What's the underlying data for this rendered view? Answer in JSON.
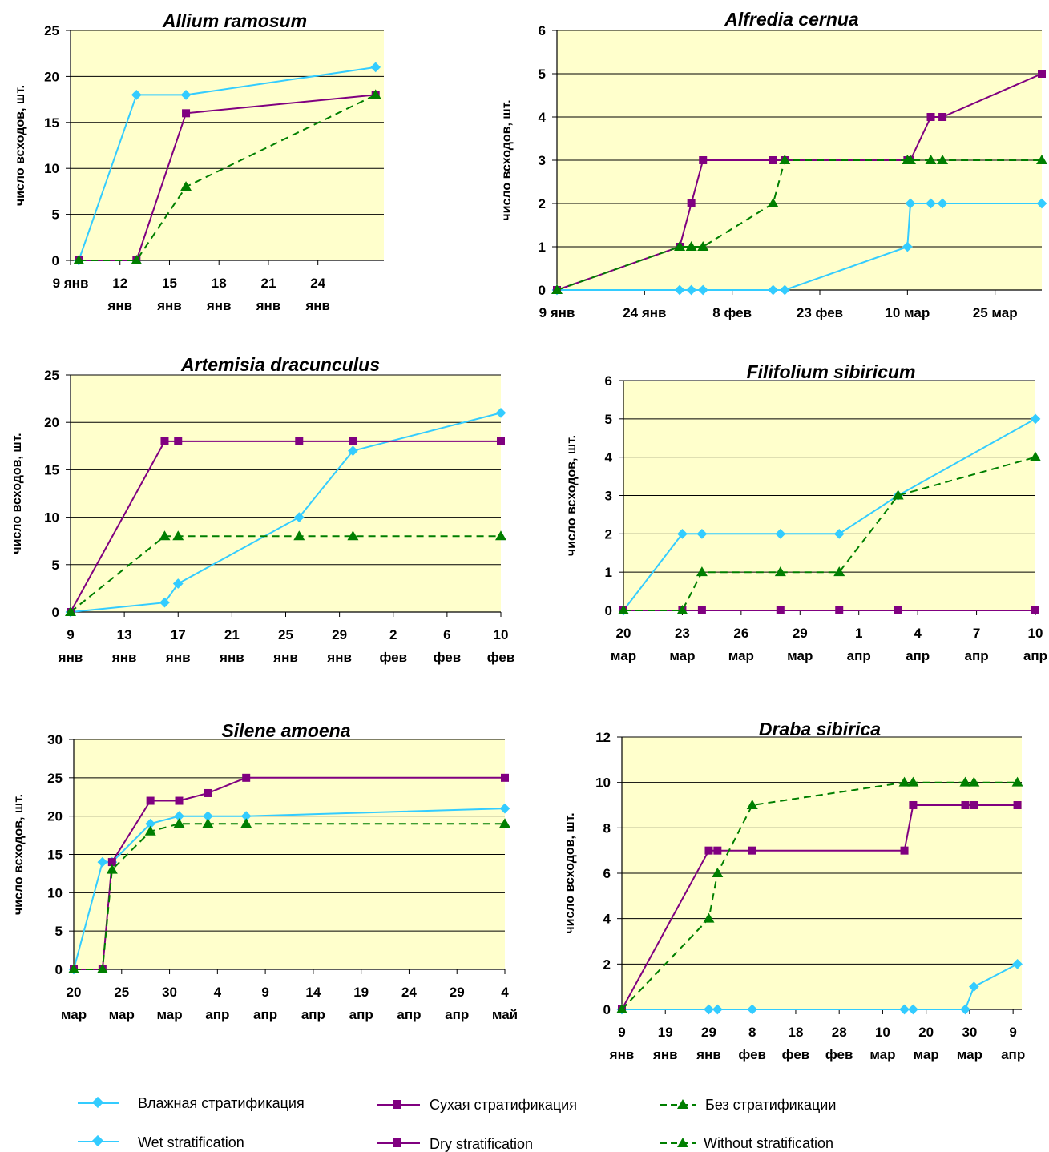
{
  "colors": {
    "wet": "#33CCFF",
    "wet_marker": "#33CCFF",
    "dry": "#800080",
    "without": "#007F00",
    "plot_bg": "#FFFFCC"
  },
  "legend": {
    "wet_ru": "Влажная   стратификация",
    "dry_ru": "Сухая   стратификация",
    "without_ru": "Без   стратификации",
    "wet_en": "Wet   stratification",
    "dry_en": "Dry   stratification",
    "without_en": "Without   stratification"
  },
  "chart_data": [
    {
      "type": "line",
      "title": "Allium ramosum",
      "ylabel": "число всходов, шт.",
      "ylim": [
        0,
        25
      ],
      "yticks": [
        0,
        5,
        10,
        15,
        20,
        25
      ],
      "xlim": [
        9,
        28
      ],
      "xticks": [
        {
          "x": 9,
          "l1": "9 янв",
          "l2": ""
        },
        {
          "x": 12,
          "l1": "12",
          "l2": "янв"
        },
        {
          "x": 15,
          "l1": "15",
          "l2": "янв"
        },
        {
          "x": 18,
          "l1": "18",
          "l2": "янв"
        },
        {
          "x": 21,
          "l1": "21",
          "l2": "янв"
        },
        {
          "x": 24,
          "l1": "24",
          "l2": "янв"
        }
      ],
      "series": [
        {
          "key": "wet",
          "x": [
            9.5,
            13,
            16,
            27.5
          ],
          "y": [
            0,
            18,
            18,
            21
          ]
        },
        {
          "key": "dry",
          "x": [
            9.5,
            13,
            16,
            27.5
          ],
          "y": [
            0,
            0,
            16,
            18
          ]
        },
        {
          "key": "without",
          "x": [
            9.5,
            13,
            16,
            27.5
          ],
          "y": [
            0,
            0,
            8,
            18
          ]
        }
      ]
    },
    {
      "type": "line",
      "title": "Alfredia cernua",
      "ylabel": "число всходов, шт.",
      "ylim": [
        0,
        6
      ],
      "yticks": [
        0,
        1,
        2,
        3,
        4,
        5,
        6
      ],
      "xlim": [
        9,
        92
      ],
      "xticks": [
        {
          "x": 9,
          "l1": "9 янв",
          "l2": ""
        },
        {
          "x": 24,
          "l1": "24 янв",
          "l2": ""
        },
        {
          "x": 39,
          "l1": "8 фев",
          "l2": ""
        },
        {
          "x": 54,
          "l1": "23 фев",
          "l2": ""
        },
        {
          "x": 69,
          "l1": "10 мар",
          "l2": ""
        },
        {
          "x": 84,
          "l1": "25 мар",
          "l2": ""
        }
      ],
      "series": [
        {
          "key": "wet",
          "x": [
            9,
            30,
            32,
            34,
            46,
            48,
            69,
            69.5,
            73,
            75,
            92
          ],
          "y": [
            0,
            0,
            0,
            0,
            0,
            0,
            1,
            2,
            2,
            2,
            2
          ]
        },
        {
          "key": "dry",
          "x": [
            9,
            30,
            32,
            34,
            46,
            48,
            69,
            69.5,
            73,
            75,
            92
          ],
          "y": [
            0,
            1,
            2,
            3,
            3,
            3,
            3,
            3,
            4,
            4,
            5
          ]
        },
        {
          "key": "without",
          "x": [
            9,
            30,
            32,
            34,
            46,
            48,
            69,
            69.5,
            73,
            75,
            92
          ],
          "y": [
            0,
            1,
            1,
            1,
            2,
            3,
            3,
            3,
            3,
            3,
            3
          ]
        }
      ]
    },
    {
      "type": "line",
      "title": "Artemisia dracunculus",
      "ylabel": "число всходов, шт.",
      "ylim": [
        0,
        25
      ],
      "yticks": [
        0,
        5,
        10,
        15,
        20,
        25
      ],
      "xlim": [
        9,
        41
      ],
      "xticks": [
        {
          "x": 9,
          "l1": "9",
          "l2": "янв"
        },
        {
          "x": 13,
          "l1": "13",
          "l2": "янв"
        },
        {
          "x": 17,
          "l1": "17",
          "l2": "янв"
        },
        {
          "x": 21,
          "l1": "21",
          "l2": "янв"
        },
        {
          "x": 25,
          "l1": "25",
          "l2": "янв"
        },
        {
          "x": 29,
          "l1": "29",
          "l2": "янв"
        },
        {
          "x": 33,
          "l1": "2",
          "l2": "фев"
        },
        {
          "x": 37,
          "l1": "6",
          "l2": "фев"
        },
        {
          "x": 41,
          "l1": "10",
          "l2": "фев"
        }
      ],
      "series": [
        {
          "key": "wet",
          "x": [
            9,
            16,
            17,
            26,
            30,
            41
          ],
          "y": [
            0,
            1,
            3,
            10,
            17,
            21
          ]
        },
        {
          "key": "dry",
          "x": [
            9,
            16,
            17,
            26,
            30,
            41
          ],
          "y": [
            0,
            18,
            18,
            18,
            18,
            18
          ]
        },
        {
          "key": "without",
          "x": [
            9,
            16,
            17,
            26,
            30,
            41
          ],
          "y": [
            0,
            8,
            8,
            8,
            8,
            8
          ]
        }
      ]
    },
    {
      "type": "line",
      "title": "Filifolium sibiricum",
      "ylabel": "число всходов, шт.",
      "ylim": [
        0,
        6
      ],
      "yticks": [
        0,
        1,
        2,
        3,
        4,
        5,
        6
      ],
      "xlim": [
        20,
        41
      ],
      "xticks": [
        {
          "x": 20,
          "l1": "20",
          "l2": "мар"
        },
        {
          "x": 23,
          "l1": "23",
          "l2": "мар"
        },
        {
          "x": 26,
          "l1": "26",
          "l2": "мар"
        },
        {
          "x": 29,
          "l1": "29",
          "l2": "мар"
        },
        {
          "x": 32,
          "l1": "1",
          "l2": "апр"
        },
        {
          "x": 35,
          "l1": "4",
          "l2": "апр"
        },
        {
          "x": 38,
          "l1": "7",
          "l2": "апр"
        },
        {
          "x": 41,
          "l1": "10",
          "l2": "апр"
        }
      ],
      "series": [
        {
          "key": "wet",
          "x": [
            20,
            23,
            24,
            28,
            31,
            34,
            41
          ],
          "y": [
            0,
            2,
            2,
            2,
            2,
            3,
            5
          ]
        },
        {
          "key": "dry",
          "x": [
            20,
            23,
            24,
            28,
            31,
            34,
            41
          ],
          "y": [
            0,
            0,
            0,
            0,
            0,
            0,
            0
          ]
        },
        {
          "key": "without",
          "x": [
            20,
            23,
            24,
            28,
            31,
            34,
            41
          ],
          "y": [
            0,
            0,
            1,
            1,
            1,
            3,
            4
          ]
        }
      ]
    },
    {
      "type": "line",
      "title": "Silene amoena",
      "ylabel": "число всходов, шт.",
      "ylim": [
        0,
        30
      ],
      "yticks": [
        0,
        5,
        10,
        15,
        20,
        25,
        30
      ],
      "xlim": [
        20,
        65
      ],
      "xticks": [
        {
          "x": 20,
          "l1": "20",
          "l2": "мар"
        },
        {
          "x": 25,
          "l1": "25",
          "l2": "мар"
        },
        {
          "x": 30,
          "l1": "30",
          "l2": "мар"
        },
        {
          "x": 35,
          "l1": "4",
          "l2": "апр"
        },
        {
          "x": 40,
          "l1": "9",
          "l2": "апр"
        },
        {
          "x": 45,
          "l1": "14",
          "l2": "апр"
        },
        {
          "x": 50,
          "l1": "19",
          "l2": "апр"
        },
        {
          "x": 55,
          "l1": "24",
          "l2": "апр"
        },
        {
          "x": 60,
          "l1": "29",
          "l2": "апр"
        },
        {
          "x": 65,
          "l1": "4",
          "l2": "май"
        }
      ],
      "series": [
        {
          "key": "wet",
          "x": [
            20,
            23,
            24,
            28,
            31,
            34,
            38,
            65
          ],
          "y": [
            0,
            14,
            14,
            19,
            20,
            20,
            20,
            21
          ]
        },
        {
          "key": "dry",
          "x": [
            20,
            23,
            24,
            28,
            31,
            34,
            38,
            65
          ],
          "y": [
            0,
            0,
            14,
            22,
            22,
            23,
            25,
            25
          ]
        },
        {
          "key": "without",
          "x": [
            20,
            23,
            24,
            28,
            31,
            34,
            38,
            65
          ],
          "y": [
            0,
            0,
            13,
            18,
            19,
            19,
            19,
            19
          ]
        }
      ]
    },
    {
      "type": "line",
      "title": "Draba sibirica",
      "ylabel": "число всходов, шт.",
      "ylim": [
        0,
        12
      ],
      "yticks": [
        0,
        2,
        4,
        6,
        8,
        10,
        12
      ],
      "xlim": [
        9,
        101
      ],
      "xticks": [
        {
          "x": 9,
          "l1": "9",
          "l2": "янв"
        },
        {
          "x": 19,
          "l1": "19",
          "l2": "янв"
        },
        {
          "x": 29,
          "l1": "29",
          "l2": "янв"
        },
        {
          "x": 39,
          "l1": "8",
          "l2": "фев"
        },
        {
          "x": 49,
          "l1": "18",
          "l2": "фев"
        },
        {
          "x": 59,
          "l1": "28",
          "l2": "фев"
        },
        {
          "x": 69,
          "l1": "10",
          "l2": "мар"
        },
        {
          "x": 79,
          "l1": "20",
          "l2": "мар"
        },
        {
          "x": 89,
          "l1": "30",
          "l2": "мар"
        },
        {
          "x": 99,
          "l1": "9",
          "l2": "апр"
        }
      ],
      "series": [
        {
          "key": "wet",
          "x": [
            9,
            29,
            31,
            39,
            74,
            76,
            88,
            90,
            100
          ],
          "y": [
            0,
            0,
            0,
            0,
            0,
            0,
            0,
            1,
            2
          ]
        },
        {
          "key": "dry",
          "x": [
            9,
            29,
            31,
            39,
            74,
            76,
            88,
            90,
            100
          ],
          "y": [
            0,
            7,
            7,
            7,
            7,
            9,
            9,
            9,
            9
          ]
        },
        {
          "key": "without",
          "x": [
            9,
            29,
            31,
            39,
            74,
            76,
            88,
            90,
            100
          ],
          "y": [
            0,
            4,
            6,
            9,
            10,
            10,
            10,
            10,
            10
          ]
        }
      ]
    }
  ]
}
